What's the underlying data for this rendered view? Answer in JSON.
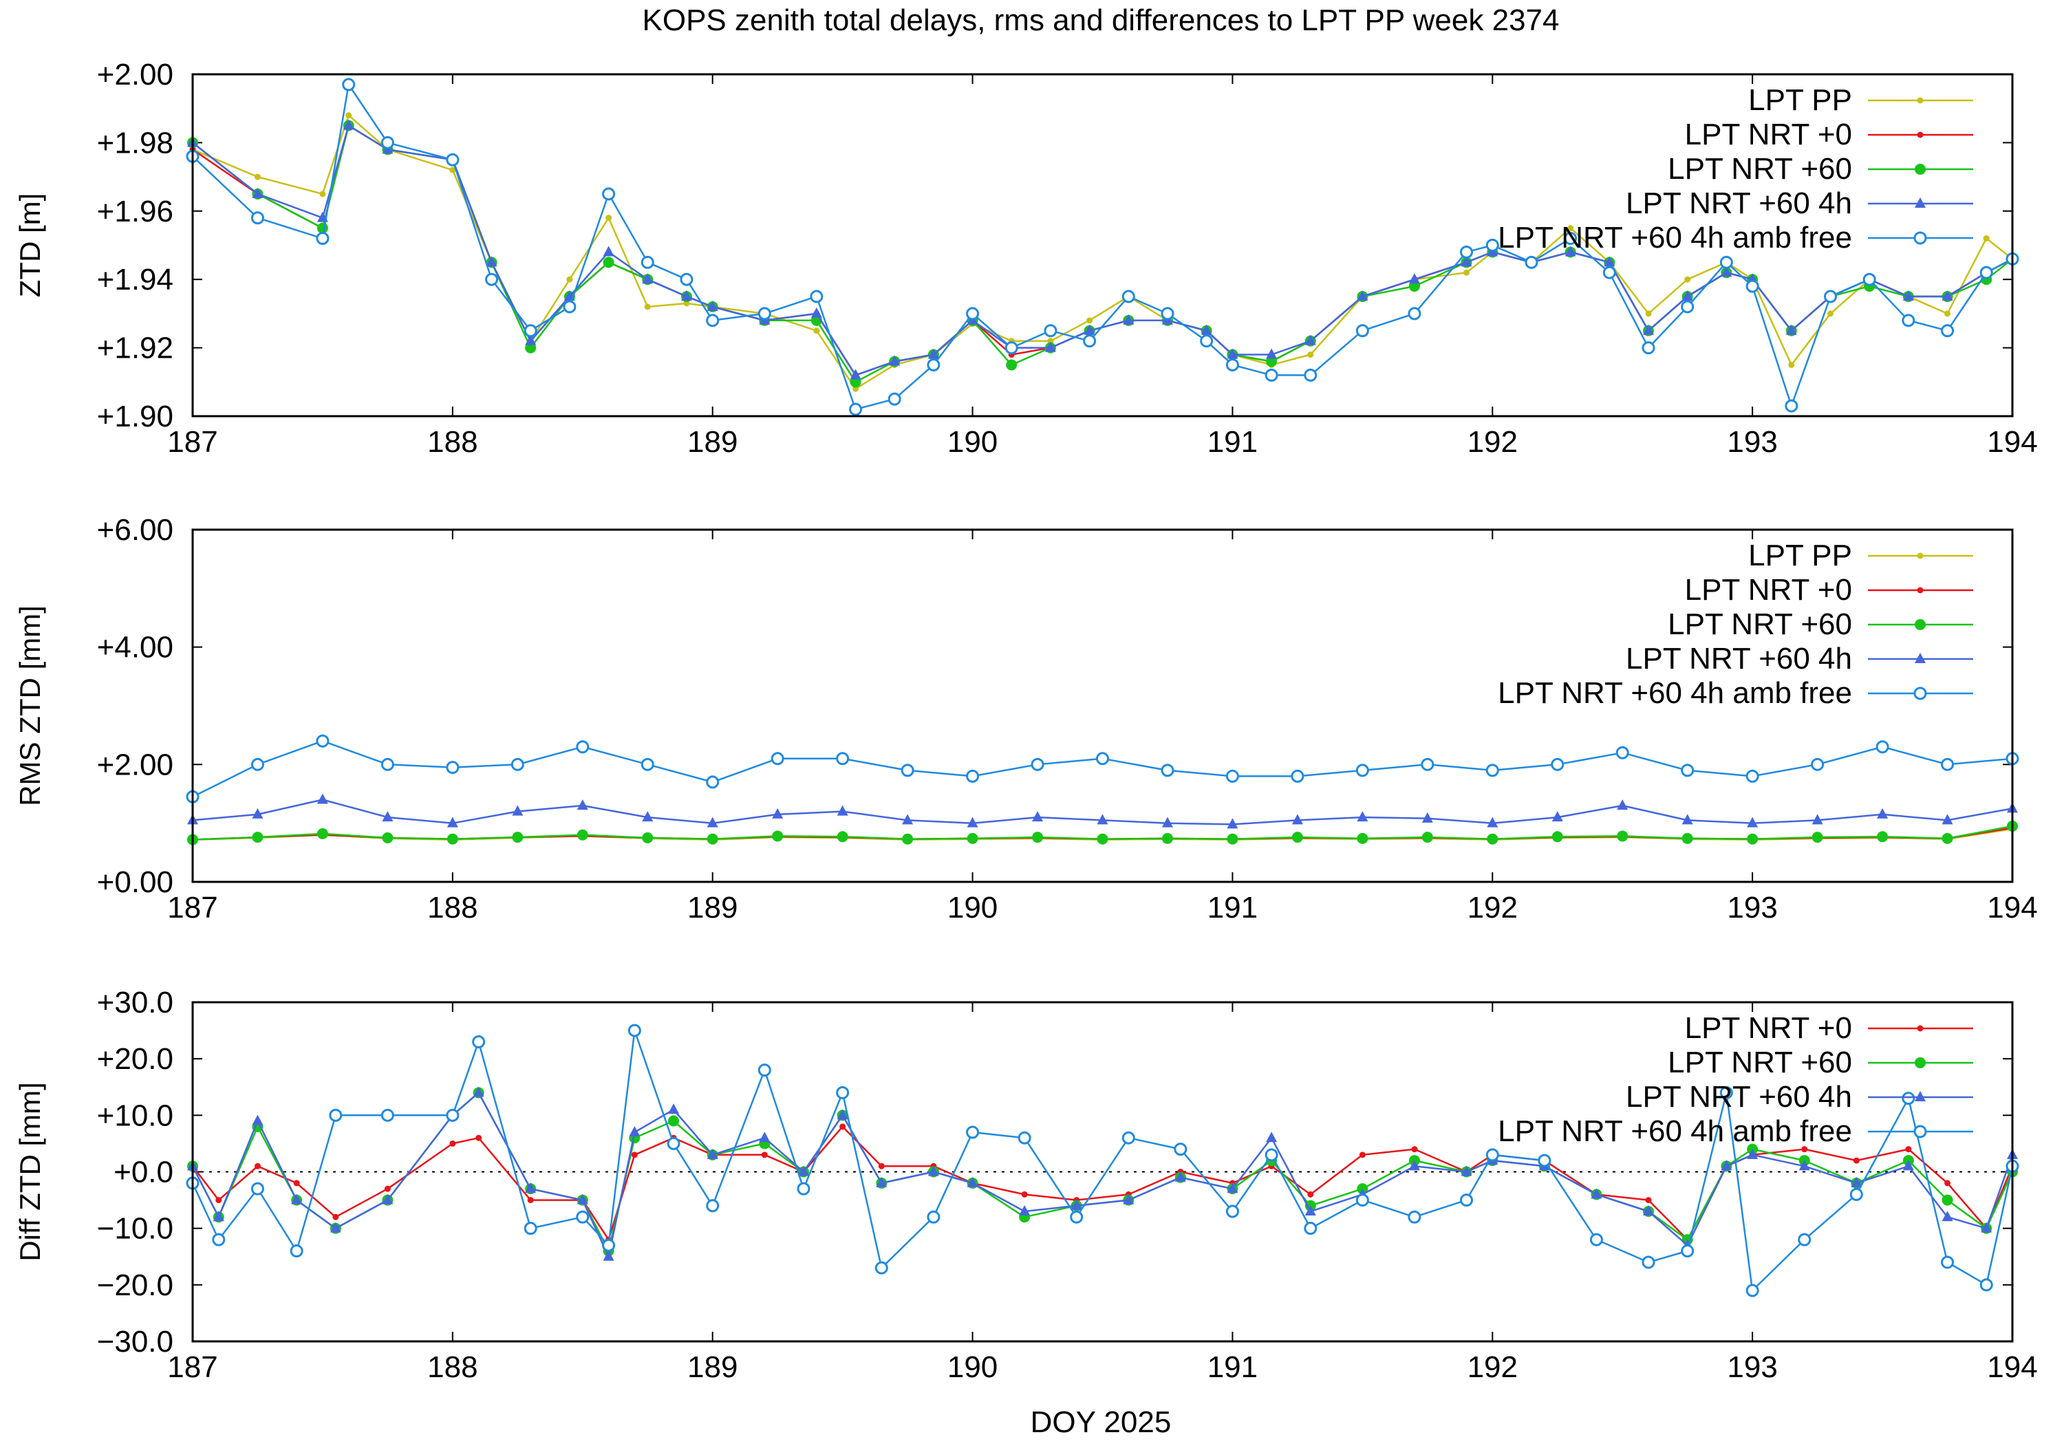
{
  "title": "KOPS zenith total delays, rms and differences to LPT PP week 2374",
  "xlabel": "DOY 2025",
  "colors": {
    "LPT PP": "#c8c017",
    "LPT NRT +0": "#e8151a",
    "LPT NRT +60": "#18c418",
    "LPT NRT +60 4h": "#4466dd",
    "LPT NRT +60 4h amb free": "#1f8ae0"
  },
  "chart_data": [
    {
      "type": "line",
      "title": "",
      "ylabel": "ZTD [m]",
      "xlim": [
        187,
        194
      ],
      "ylim": [
        1.9,
        2.0
      ],
      "x_ticks": [
        "187",
        "188",
        "189",
        "190",
        "191",
        "192",
        "193",
        "194"
      ],
      "y_ticks": [
        "+1.90",
        "+1.92",
        "+1.94",
        "+1.96",
        "+1.98",
        "+2.00"
      ],
      "legend": "top-right",
      "grid": false,
      "x": [
        187.0,
        187.25,
        187.5,
        187.6,
        187.75,
        188.0,
        188.15,
        188.3,
        188.45,
        188.6,
        188.75,
        188.9,
        189.0,
        189.2,
        189.4,
        189.55,
        189.7,
        189.85,
        190.0,
        190.15,
        190.3,
        190.45,
        190.6,
        190.75,
        190.9,
        191.0,
        191.15,
        191.3,
        191.5,
        191.7,
        191.9,
        192.0,
        192.15,
        192.3,
        192.45,
        192.6,
        192.75,
        192.9,
        193.0,
        193.15,
        193.3,
        193.45,
        193.6,
        193.75,
        193.9,
        194.0
      ],
      "series": [
        {
          "name": "LPT PP",
          "values": [
            1.978,
            1.97,
            1.965,
            1.988,
            1.978,
            1.972,
            1.945,
            1.922,
            1.94,
            1.958,
            1.932,
            1.933,
            1.932,
            1.93,
            1.925,
            1.908,
            1.915,
            1.918,
            1.927,
            1.922,
            1.922,
            1.928,
            1.935,
            1.928,
            1.925,
            1.918,
            1.915,
            1.918,
            1.935,
            1.94,
            1.942,
            1.948,
            1.945,
            1.955,
            1.945,
            1.93,
            1.94,
            1.945,
            1.94,
            1.915,
            1.93,
            1.94,
            1.935,
            1.93,
            1.952,
            1.946
          ]
        },
        {
          "name": "LPT NRT +0",
          "values": [
            1.978,
            1.965,
            1.955,
            1.985,
            1.978,
            1.975,
            1.945,
            1.922,
            1.935,
            1.945,
            1.94,
            1.935,
            1.932,
            1.928,
            1.93,
            1.912,
            1.916,
            1.918,
            1.928,
            1.918,
            1.92,
            1.925,
            1.928,
            1.928,
            1.925,
            1.918,
            1.916,
            1.922,
            1.935,
            1.94,
            1.945,
            1.948,
            1.945,
            1.948,
            1.945,
            1.925,
            1.935,
            1.942,
            1.94,
            1.925,
            1.935,
            1.94,
            1.935,
            1.935,
            1.942,
            1.946
          ]
        },
        {
          "name": "LPT NRT +60",
          "values": [
            1.98,
            1.965,
            1.955,
            1.985,
            1.978,
            1.975,
            1.945,
            1.92,
            1.935,
            1.945,
            1.94,
            1.935,
            1.932,
            1.928,
            1.928,
            1.91,
            1.916,
            1.918,
            1.928,
            1.915,
            1.92,
            1.925,
            1.928,
            1.928,
            1.925,
            1.918,
            1.916,
            1.922,
            1.935,
            1.938,
            1.945,
            1.948,
            1.945,
            1.948,
            1.945,
            1.925,
            1.935,
            1.942,
            1.94,
            1.925,
            1.935,
            1.938,
            1.935,
            1.935,
            1.94,
            1.946
          ]
        },
        {
          "name": "LPT NRT +60 4h",
          "values": [
            1.98,
            1.965,
            1.958,
            1.985,
            1.978,
            1.975,
            1.945,
            1.922,
            1.935,
            1.948,
            1.94,
            1.935,
            1.932,
            1.928,
            1.93,
            1.912,
            1.916,
            1.918,
            1.928,
            1.92,
            1.92,
            1.925,
            1.928,
            1.928,
            1.925,
            1.918,
            1.918,
            1.922,
            1.935,
            1.94,
            1.945,
            1.948,
            1.945,
            1.948,
            1.945,
            1.925,
            1.935,
            1.942,
            1.94,
            1.925,
            1.935,
            1.94,
            1.935,
            1.935,
            1.942,
            1.946
          ]
        },
        {
          "name": "LPT NRT +60 4h amb free",
          "values": [
            1.976,
            1.958,
            1.952,
            1.997,
            1.98,
            1.975,
            1.94,
            1.925,
            1.932,
            1.965,
            1.945,
            1.94,
            1.928,
            1.93,
            1.935,
            1.902,
            1.905,
            1.915,
            1.93,
            1.92,
            1.925,
            1.922,
            1.935,
            1.93,
            1.922,
            1.915,
            1.912,
            1.912,
            1.925,
            1.93,
            1.948,
            1.95,
            1.945,
            1.952,
            1.942,
            1.92,
            1.932,
            1.945,
            1.938,
            1.903,
            1.935,
            1.94,
            1.928,
            1.925,
            1.942,
            1.946
          ]
        }
      ]
    },
    {
      "type": "line",
      "title": "",
      "ylabel": "RMS ZTD [mm]",
      "xlim": [
        187,
        194
      ],
      "ylim": [
        0,
        6
      ],
      "x_ticks": [
        "187",
        "188",
        "189",
        "190",
        "191",
        "192",
        "193",
        "194"
      ],
      "y_ticks": [
        "+0.00",
        "+2.00",
        "+4.00",
        "+6.00"
      ],
      "legend": "top-right",
      "grid": false,
      "x": [
        187.0,
        187.25,
        187.5,
        187.75,
        188.0,
        188.25,
        188.5,
        188.75,
        189.0,
        189.25,
        189.5,
        189.75,
        190.0,
        190.25,
        190.5,
        190.75,
        191.0,
        191.25,
        191.5,
        191.75,
        192.0,
        192.25,
        192.5,
        192.75,
        193.0,
        193.25,
        193.5,
        193.75,
        194.0
      ],
      "series": [
        {
          "name": "LPT PP",
          "values": [
            0.72,
            0.75,
            0.8,
            0.74,
            0.72,
            0.75,
            0.78,
            0.74,
            0.72,
            0.76,
            0.75,
            0.72,
            0.73,
            0.74,
            0.72,
            0.73,
            0.72,
            0.74,
            0.73,
            0.74,
            0.72,
            0.75,
            0.76,
            0.73,
            0.72,
            0.74,
            0.75,
            0.73,
            0.9
          ]
        },
        {
          "name": "LPT NRT +0",
          "values": [
            0.72,
            0.76,
            0.8,
            0.75,
            0.73,
            0.76,
            0.78,
            0.75,
            0.73,
            0.77,
            0.76,
            0.73,
            0.74,
            0.75,
            0.73,
            0.74,
            0.73,
            0.75,
            0.74,
            0.75,
            0.73,
            0.76,
            0.77,
            0.74,
            0.73,
            0.75,
            0.76,
            0.74,
            0.92
          ]
        },
        {
          "name": "LPT NRT +60",
          "values": [
            0.72,
            0.76,
            0.82,
            0.75,
            0.73,
            0.76,
            0.8,
            0.75,
            0.73,
            0.78,
            0.77,
            0.73,
            0.74,
            0.76,
            0.73,
            0.74,
            0.73,
            0.76,
            0.74,
            0.76,
            0.73,
            0.77,
            0.78,
            0.74,
            0.73,
            0.76,
            0.77,
            0.74,
            0.95
          ]
        },
        {
          "name": "LPT NRT +60 4h",
          "values": [
            1.05,
            1.15,
            1.4,
            1.1,
            1.0,
            1.2,
            1.3,
            1.1,
            1.0,
            1.15,
            1.2,
            1.05,
            1.0,
            1.1,
            1.05,
            1.0,
            0.98,
            1.05,
            1.1,
            1.08,
            1.0,
            1.1,
            1.3,
            1.05,
            1.0,
            1.05,
            1.15,
            1.05,
            1.25
          ]
        },
        {
          "name": "LPT NRT +60 4h amb free",
          "values": [
            1.45,
            2.0,
            2.4,
            2.0,
            1.95,
            2.0,
            2.3,
            2.0,
            1.7,
            2.1,
            2.1,
            1.9,
            1.8,
            2.0,
            2.1,
            1.9,
            1.8,
            1.8,
            1.9,
            2.0,
            1.9,
            2.0,
            2.2,
            1.9,
            1.8,
            2.0,
            2.3,
            2.0,
            2.1
          ]
        }
      ]
    },
    {
      "type": "line",
      "title": "",
      "ylabel": "Diff ZTD [mm]",
      "xlim": [
        187,
        194
      ],
      "ylim": [
        -30,
        30
      ],
      "x_ticks": [
        "187",
        "188",
        "189",
        "190",
        "191",
        "192",
        "193",
        "194"
      ],
      "y_ticks": [
        "−30.0",
        "−20.0",
        "−10.0",
        "+0.0",
        "+10.0",
        "+20.0",
        "+30.0"
      ],
      "legend": "top-right",
      "grid": false,
      "x": [
        187.0,
        187.1,
        187.25,
        187.4,
        187.55,
        187.75,
        188.0,
        188.1,
        188.3,
        188.5,
        188.6,
        188.7,
        188.85,
        189.0,
        189.2,
        189.35,
        189.5,
        189.65,
        189.85,
        190.0,
        190.2,
        190.4,
        190.6,
        190.8,
        191.0,
        191.15,
        191.3,
        191.5,
        191.7,
        191.9,
        192.0,
        192.2,
        192.4,
        192.6,
        192.75,
        192.9,
        193.0,
        193.2,
        193.4,
        193.6,
        193.75,
        193.9,
        194.0
      ],
      "series": [
        {
          "name": "LPT NRT +0",
          "values": [
            1.0,
            -5.0,
            1.0,
            -2.0,
            -8.0,
            -3.0,
            5.0,
            6.0,
            -5.0,
            -5.0,
            -12.0,
            3.0,
            6.0,
            3.0,
            3.0,
            0.0,
            8.0,
            1.0,
            1.0,
            -2.0,
            -4.0,
            -5.0,
            -4.0,
            0.0,
            -2.0,
            1.0,
            -4.0,
            3.0,
            4.0,
            0.0,
            3.0,
            2.0,
            -4.0,
            -5.0,
            -12.0,
            1.0,
            3.0,
            4.0,
            2.0,
            4.0,
            -2.0,
            -10.0,
            1.0
          ]
        },
        {
          "name": "LPT NRT +60",
          "values": [
            1.0,
            -8.0,
            8.0,
            -5.0,
            -10.0,
            -5.0,
            10.0,
            14.0,
            -3.0,
            -5.0,
            -14.0,
            6.0,
            9.0,
            3.0,
            5.0,
            0.0,
            10.0,
            -2.0,
            0.0,
            -2.0,
            -8.0,
            -6.0,
            -5.0,
            -1.0,
            -3.0,
            2.0,
            -6.0,
            -3.0,
            2.0,
            0.0,
            2.0,
            1.0,
            -4.0,
            -7.0,
            -12.0,
            1.0,
            4.0,
            2.0,
            -2.0,
            2.0,
            -5.0,
            -10.0,
            0.0
          ]
        },
        {
          "name": "LPT NRT +60 4h",
          "values": [
            1.0,
            -8.0,
            9.0,
            -5.0,
            -10.0,
            -5.0,
            10.0,
            14.0,
            -3.0,
            -5.0,
            -15.0,
            7.0,
            11.0,
            3.0,
            6.0,
            0.0,
            10.0,
            -2.0,
            0.0,
            -2.0,
            -7.0,
            -6.0,
            -5.0,
            -1.0,
            -3.0,
            6.0,
            -7.0,
            -4.0,
            1.0,
            0.0,
            2.0,
            1.0,
            -4.0,
            -7.0,
            -13.0,
            1.0,
            3.0,
            1.0,
            -2.0,
            1.0,
            -8.0,
            -10.0,
            3.0
          ]
        },
        {
          "name": "LPT NRT +60 4h amb free",
          "values": [
            -2.0,
            -12.0,
            -3.0,
            -14.0,
            10.0,
            10.0,
            10.0,
            23.0,
            -10.0,
            -8.0,
            -13.0,
            25.0,
            5.0,
            -6.0,
            18.0,
            -3.0,
            14.0,
            -17.0,
            -8.0,
            7.0,
            6.0,
            -8.0,
            6.0,
            4.0,
            -7.0,
            3.0,
            -10.0,
            -5.0,
            -8.0,
            -5.0,
            3.0,
            2.0,
            -12.0,
            -16.0,
            -14.0,
            14.0,
            -21.0,
            -12.0,
            -4.0,
            13.0,
            -16.0,
            -20.0,
            1.0
          ]
        }
      ]
    }
  ]
}
